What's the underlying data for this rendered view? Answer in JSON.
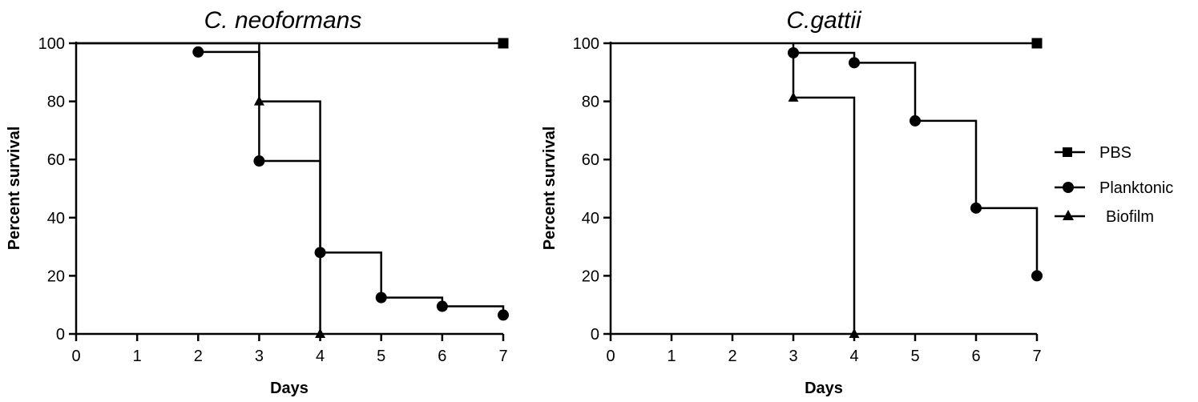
{
  "chart_data": [
    {
      "type": "line",
      "title": "C. neoformans",
      "xlabel": "Days",
      "ylabel": "Percent survival",
      "xlim": [
        0,
        7
      ],
      "ylim": [
        0,
        100
      ],
      "xticks": [
        "0",
        "1",
        "2",
        "3",
        "4",
        "5",
        "6",
        "7"
      ],
      "yticks": [
        "0",
        "20",
        "40",
        "60",
        "80",
        "100"
      ],
      "series": [
        {
          "name": "PBS",
          "marker": "square",
          "steps": [
            [
              0,
              100
            ],
            [
              7,
              100
            ]
          ],
          "points": [
            [
              7,
              100
            ]
          ]
        },
        {
          "name": "Planktonic",
          "marker": "circle",
          "steps": [
            [
              2,
              97
            ],
            [
              3,
              97
            ],
            [
              3,
              59.5
            ],
            [
              4,
              59.5
            ],
            [
              4,
              28
            ],
            [
              5,
              28
            ],
            [
              5,
              12.5
            ],
            [
              6,
              12.5
            ],
            [
              6,
              9.5
            ],
            [
              7,
              9.5
            ],
            [
              7,
              6.5
            ]
          ],
          "points": [
            [
              2,
              97
            ],
            [
              3,
              59.5
            ],
            [
              4,
              28
            ],
            [
              5,
              12.5
            ],
            [
              6,
              9.5
            ],
            [
              7,
              6.5
            ]
          ]
        },
        {
          "name": "Biofilm",
          "marker": "triangle",
          "steps": [
            [
              0,
              100
            ],
            [
              3,
              100
            ],
            [
              3,
              80
            ],
            [
              4,
              80
            ],
            [
              4,
              0
            ]
          ],
          "points": [
            [
              3,
              80
            ],
            [
              4,
              0
            ]
          ]
        }
      ]
    },
    {
      "type": "line",
      "title": "C.gattii",
      "xlabel": "Days",
      "ylabel": "Percent survival",
      "xlim": [
        0,
        7
      ],
      "ylim": [
        0,
        100
      ],
      "xticks": [
        "0",
        "1",
        "2",
        "3",
        "4",
        "5",
        "6",
        "7"
      ],
      "yticks": [
        "0",
        "20",
        "40",
        "60",
        "80",
        "100"
      ],
      "series": [
        {
          "name": "PBS",
          "marker": "square",
          "steps": [
            [
              0,
              100
            ],
            [
              7,
              100
            ]
          ],
          "points": [
            [
              7,
              100
            ]
          ]
        },
        {
          "name": "Planktonic",
          "marker": "circle",
          "steps": [
            [
              3,
              100
            ],
            [
              3,
              96.7
            ],
            [
              4,
              96.7
            ],
            [
              4,
              93.3
            ],
            [
              5,
              93.3
            ],
            [
              5,
              73.3
            ],
            [
              6,
              73.3
            ],
            [
              6,
              43.3
            ],
            [
              7,
              43.3
            ],
            [
              7,
              20
            ]
          ],
          "points": [
            [
              3,
              96.7
            ],
            [
              4,
              93.3
            ],
            [
              5,
              73.3
            ],
            [
              6,
              43.3
            ],
            [
              7,
              20
            ]
          ]
        },
        {
          "name": "Biofilm",
          "marker": "triangle",
          "steps": [
            [
              3,
              96.7
            ],
            [
              3,
              81.3
            ],
            [
              4,
              81.3
            ],
            [
              4,
              0
            ]
          ],
          "points": [
            [
              3,
              81.3
            ],
            [
              4,
              0
            ]
          ]
        }
      ]
    }
  ],
  "legend": {
    "placement": "right",
    "entries": [
      {
        "label": "PBS",
        "marker": "square"
      },
      {
        "label": "Planktonic",
        "marker": "circle"
      },
      {
        "label": "Biofilm",
        "marker": "triangle"
      }
    ]
  }
}
